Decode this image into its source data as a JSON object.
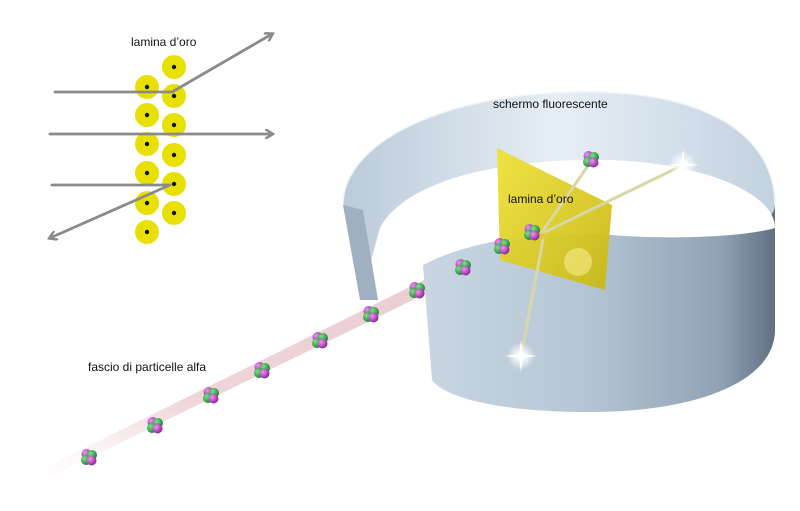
{
  "labels": {
    "inset_foil": "lamina d’oro",
    "screen": "schermo fluorescente",
    "foil": "lamina d’oro",
    "beam": "fascio di particelle alfa"
  },
  "colors": {
    "gold_atom": "#e8e000",
    "nucleus": "#111111",
    "arrow": "#8a8a8a",
    "screen_outer": "#a9b9c9",
    "screen_inner": "#d6e3ee",
    "foil": "#e2d21f",
    "proton": "#b03cb8",
    "neutron": "#2faa4a",
    "beam": "#e9c9cf"
  },
  "icons": [
    "alpha-particle-icon",
    "flash-icon",
    "gold-atom-icon",
    "arrow-icon"
  ]
}
